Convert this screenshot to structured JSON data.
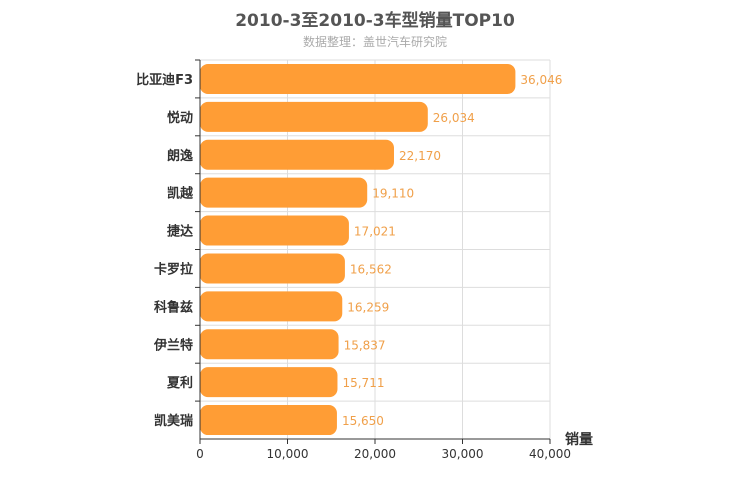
{
  "chart_data": {
    "type": "bar",
    "orientation": "horizontal",
    "title": "2010-3至2010-3车型销量TOP10",
    "subtitle": "数据整理：盖世汽车研究院",
    "categories": [
      "比亚迪F3",
      "悦动",
      "朗逸",
      "凯越",
      "捷达",
      "卡罗拉",
      "科鲁兹",
      "伊兰特",
      "夏利",
      "凯美瑞"
    ],
    "values": [
      36046,
      26034,
      22170,
      19110,
      17021,
      16562,
      16259,
      15837,
      15711,
      15650
    ],
    "value_labels": [
      "36,046",
      "26,034",
      "22,170",
      "19,110",
      "17,021",
      "16,562",
      "16,259",
      "15,837",
      "15,711",
      "15,650"
    ],
    "xlabel": "销量",
    "ylabel": "",
    "xlim": [
      0,
      40000
    ],
    "ticks": [
      0,
      10000,
      20000,
      30000,
      40000
    ],
    "tick_labels": [
      "0",
      "10,000",
      "20,000",
      "30,000",
      "40,000"
    ],
    "grid": true,
    "bar_color": "#ff9d35",
    "label_color": "#f0a04a"
  }
}
